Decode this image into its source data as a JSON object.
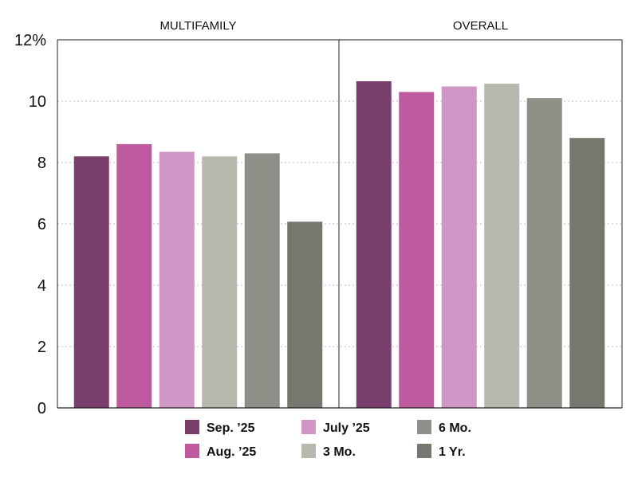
{
  "chart_data": {
    "type": "bar",
    "panels": [
      "MULTIFAMILY",
      "OVERALL"
    ],
    "series": [
      {
        "name": "Sep. ’25",
        "color": "#7b3f6e",
        "values": [
          8.2,
          10.65
        ]
      },
      {
        "name": "Aug. ’25",
        "color": "#c05a9f",
        "values": [
          8.6,
          10.3
        ]
      },
      {
        "name": "July ’25",
        "color": "#d096c6",
        "values": [
          8.35,
          10.48
        ]
      },
      {
        "name": "3 Mo.",
        "color": "#b8b8ae",
        "values": [
          8.2,
          10.57
        ]
      },
      {
        "name": "6 Mo.",
        "color": "#8e8f86",
        "values": [
          8.3,
          10.1
        ]
      },
      {
        "name": "1 Yr.",
        "color": "#76776f",
        "values": [
          6.07,
          8.8
        ]
      }
    ],
    "y_ticks": [
      "0",
      "2",
      "4",
      "6",
      "8",
      "10",
      "12%"
    ],
    "ylim": [
      0,
      12
    ],
    "grid": "dotted horizontal",
    "legend_position": "bottom"
  }
}
